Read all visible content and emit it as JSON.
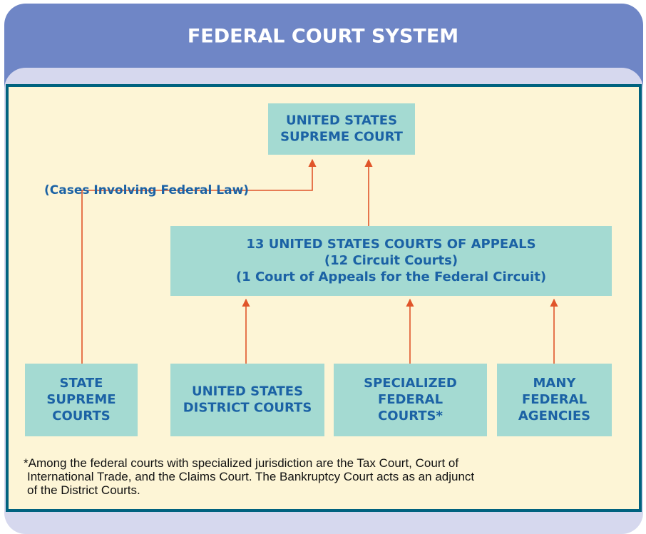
{
  "title": "FEDERAL COURT SYSTEM",
  "nodes": [
    {
      "lines": [
        "UNITED STATES",
        "SUPREME COURT"
      ]
    },
    {
      "lines": [
        "13 UNITED STATES COURTS OF APPEALS",
        "(12 Circuit Courts)",
        "(1 Court of Appeals for the Federal Circuit)"
      ]
    },
    {
      "lines": [
        "STATE",
        "SUPREME",
        "COURTS"
      ]
    },
    {
      "lines": [
        "UNITED STATES",
        "DISTRICT COURTS"
      ]
    },
    {
      "lines": [
        "SPECIALIZED",
        "FEDERAL",
        "COURTS*"
      ]
    },
    {
      "lines": [
        "MANY",
        "FEDERAL",
        "AGENCIES"
      ]
    }
  ],
  "annotation": "(Cases Involving Federal Law)",
  "footnote": [
    "*Among the federal courts with specialized jurisdiction are the Tax Court, Court of",
    "International Trade, and the Claims Court. The Bankruptcy Court acts as an adjunct",
    "of the District Courts."
  ]
}
